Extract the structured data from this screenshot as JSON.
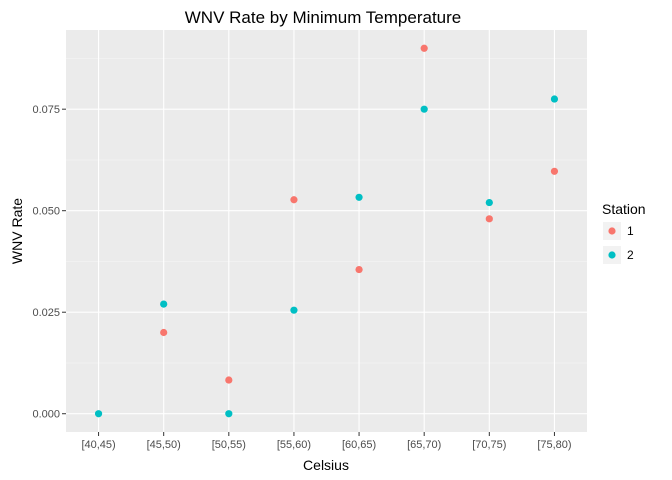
{
  "chart_data": {
    "type": "scatter",
    "title": "WNV Rate by Minimum Temperature",
    "xlabel": "Celsius",
    "ylabel": "WNV Rate",
    "categories": [
      "[40,45)",
      "[45,50)",
      "[50,55)",
      "[55,60)",
      "[60,65)",
      "[65,70)",
      "[70,75)",
      "[75,80)"
    ],
    "yticks": [
      0.0,
      0.025,
      0.05,
      0.075
    ],
    "ytick_labels": [
      "0.000",
      "0.025",
      "0.050",
      "0.075"
    ],
    "ylim": [
      -0.0045,
      0.0945
    ],
    "grid": true,
    "legend_title": "Station",
    "legend_position": "right",
    "series": [
      {
        "name": "1",
        "color": "#F8766D",
        "points": [
          {
            "x": "[45,50)",
            "y": 0.02
          },
          {
            "x": "[50,55)",
            "y": 0.0083
          },
          {
            "x": "[55,60)",
            "y": 0.0527
          },
          {
            "x": "[60,65)",
            "y": 0.0355
          },
          {
            "x": "[65,70)",
            "y": 0.09
          },
          {
            "x": "[70,75)",
            "y": 0.048
          },
          {
            "x": "[75,80)",
            "y": 0.0597
          }
        ]
      },
      {
        "name": "2",
        "color": "#00BFC4",
        "points": [
          {
            "x": "[40,45)",
            "y": 0.0
          },
          {
            "x": "[45,50)",
            "y": 0.027
          },
          {
            "x": "[50,55)",
            "y": 0.0
          },
          {
            "x": "[55,60)",
            "y": 0.0255
          },
          {
            "x": "[60,65)",
            "y": 0.0533
          },
          {
            "x": "[65,70)",
            "y": 0.075
          },
          {
            "x": "[70,75)",
            "y": 0.052
          },
          {
            "x": "[75,80)",
            "y": 0.0775
          }
        ]
      }
    ]
  }
}
